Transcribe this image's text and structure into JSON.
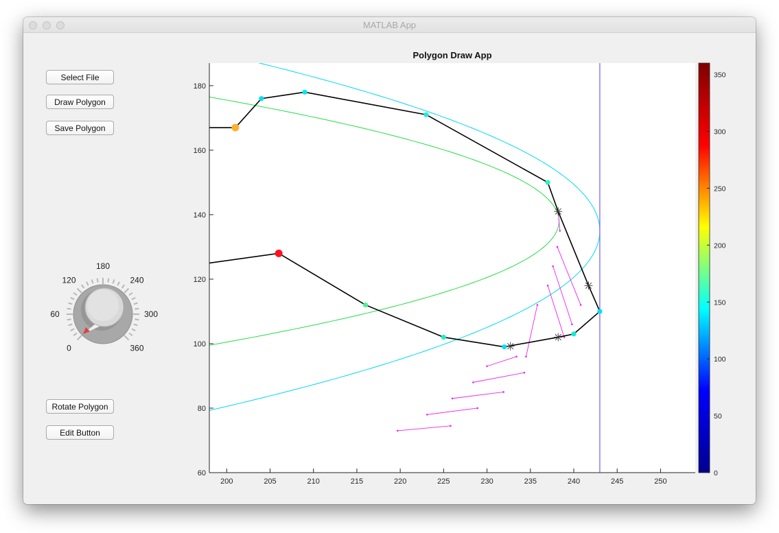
{
  "window": {
    "title": "MATLAB App"
  },
  "buttons": {
    "select_file": "Select File",
    "draw_polygon": "Draw Polygon",
    "save_polygon": "Save Polygon",
    "rotate_polygon": "Rotate Polygon",
    "edit_button": "Edit Button"
  },
  "knob": {
    "labels": [
      "0",
      "60",
      "120",
      "180",
      "240",
      "300",
      "360"
    ],
    "value": 0,
    "min": 0,
    "max": 360
  },
  "axes": {
    "title": "Polygon Draw App"
  },
  "colors": {
    "polygon": "#000000",
    "green_curve": "#22dd44",
    "cyan_curve": "#00d8ee",
    "vertical_line": "#7b68ee",
    "hatch": "#ee22ee",
    "vertex_orange": "#ffb030",
    "vertex_red": "#ff1020"
  },
  "chart_data": {
    "type": "line",
    "title": "Polygon Draw App",
    "xlabel": "",
    "ylabel": "",
    "xlim": [
      198,
      254
    ],
    "ylim": [
      60,
      187
    ],
    "xticks": [
      200,
      205,
      210,
      215,
      220,
      225,
      230,
      235,
      240,
      245,
      250
    ],
    "yticks": [
      60,
      80,
      100,
      120,
      140,
      160,
      180
    ],
    "grid": false,
    "polygon": {
      "x": [
        198,
        201,
        204,
        209,
        223,
        237,
        238.2,
        241.7,
        243,
        240,
        238.2,
        232,
        225,
        216,
        206,
        198
      ],
      "y": [
        167,
        167,
        176,
        178,
        171,
        150,
        141,
        118,
        110,
        103,
        102,
        99,
        102,
        112,
        128,
        125
      ]
    },
    "vertex_markers": [
      {
        "x": 201,
        "y": 167,
        "color": "#ffb030",
        "size": "large"
      },
      {
        "x": 204,
        "y": 176,
        "color": "#00e0f0"
      },
      {
        "x": 209,
        "y": 178,
        "color": "#00e8f0"
      },
      {
        "x": 223,
        "y": 171,
        "color": "#20ecd8"
      },
      {
        "x": 237,
        "y": 150,
        "color": "#30f0c0"
      },
      {
        "x": 243,
        "y": 110,
        "color": "#00e0f8"
      },
      {
        "x": 240,
        "y": 103,
        "color": "#10ecd8"
      },
      {
        "x": 232,
        "y": 99,
        "color": "#00e0f0"
      },
      {
        "x": 225,
        "y": 102,
        "color": "#20ecd0"
      },
      {
        "x": 216,
        "y": 112,
        "color": "#50f090"
      },
      {
        "x": 206,
        "y": 128,
        "color": "#ff1020",
        "size": "large"
      }
    ],
    "intersections": [
      {
        "x": 238.2,
        "y": 141
      },
      {
        "x": 241.7,
        "y": 118
      },
      {
        "x": 238.2,
        "y": 102
      },
      {
        "x": 232.7,
        "y": 99.2
      }
    ],
    "green_curve": {
      "vertex_x": 238.3,
      "vertex_y": 138,
      "a": 0.0272
    },
    "cyan_curve": {
      "vertex_x": 243,
      "vertex_y": 135,
      "a": 0.0145
    },
    "vertical_line_x": 243,
    "hatch_lines": [
      {
        "x1": 238.2,
        "y1": 141,
        "x2": 238.4,
        "y2": 135
      },
      {
        "x1": 238.1,
        "y1": 130,
        "x2": 240.8,
        "y2": 112
      },
      {
        "x1": 237.6,
        "y1": 124,
        "x2": 239.8,
        "y2": 106
      },
      {
        "x1": 237.0,
        "y1": 118,
        "x2": 238.9,
        "y2": 102
      },
      {
        "x1": 235.8,
        "y1": 112,
        "x2": 234.5,
        "y2": 96
      },
      {
        "x1": 230.0,
        "y1": 93,
        "x2": 233.4,
        "y2": 96
      },
      {
        "x1": 228.4,
        "y1": 88,
        "x2": 234.3,
        "y2": 91
      },
      {
        "x1": 226.0,
        "y1": 83,
        "x2": 231.9,
        "y2": 85
      },
      {
        "x1": 223.1,
        "y1": 78,
        "x2": 228.9,
        "y2": 80
      },
      {
        "x1": 219.7,
        "y1": 73,
        "x2": 225.8,
        "y2": 74.5
      }
    ],
    "colorbar": {
      "min": 0,
      "max": 360,
      "ticks": [
        0,
        50,
        100,
        150,
        200,
        250,
        300,
        350
      ],
      "colormap": [
        "#00008f",
        "#0000ff",
        "#00ffff",
        "#ffff00",
        "#ff0000",
        "#800000"
      ]
    }
  }
}
